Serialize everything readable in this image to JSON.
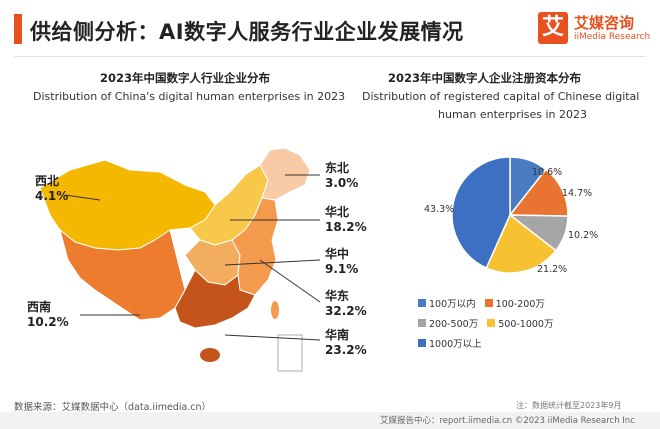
{
  "header": {
    "title": "供给侧分析：AI数字人服务行业企业发展情况",
    "logo_mark": "艾",
    "logo_cn": "艾媒咨询",
    "logo_en": "iiMedia Research"
  },
  "colors": {
    "accent": "#e8501e",
    "pie": [
      "#4a7cc4",
      "#e97432",
      "#a5a5a5",
      "#f7c232",
      "#3d6fc2"
    ],
    "map": {
      "west": "#f5b800",
      "south_west": "#ee7c2f",
      "south": "#c5541a",
      "north": "#f8c84a",
      "north_east": "#f8cba6",
      "east": "#f39a4d",
      "central": "#f3ad5e"
    }
  },
  "left_panel": {
    "title_cn": "2023年中国数字人行业企业分布",
    "title_en": "Distribution of China's digital human enterprises in 2023"
  },
  "right_panel": {
    "title_cn": "2023年中国数字人企业注册资本分布",
    "title_en_line1": "Distribution of registered capital of Chinese digital",
    "title_en_line2": "human enterprises in 2023"
  },
  "chart_data": [
    {
      "type": "map",
      "title": "2023年中国数字人行业企业分布",
      "subtitle": "Distribution of China's digital human enterprises in 2023",
      "categories": [
        "西北",
        "东北",
        "华北",
        "华中",
        "华东",
        "西南",
        "华南"
      ],
      "values": [
        4.1,
        3.0,
        18.2,
        9.1,
        32.2,
        10.2,
        23.2
      ],
      "value_labels": [
        "4.1%",
        "3.0%",
        "18.2%",
        "9.1%",
        "32.2%",
        "10.2%",
        "23.2%"
      ],
      "unit": "%"
    },
    {
      "type": "pie",
      "title": "2023年中国数字人企业注册资本分布",
      "subtitle": "Distribution of registered capital of Chinese digital human enterprises in 2023",
      "categories": [
        "100万以内",
        "100-200万",
        "200-500万",
        "500-1000万",
        "1000万以上"
      ],
      "values": [
        10.6,
        14.7,
        10.2,
        21.2,
        43.3
      ],
      "value_labels": [
        "10.6%",
        "14.7%",
        "10.2%",
        "21.2%",
        "43.3%"
      ],
      "legend_position": "bottom",
      "unit": "%"
    }
  ],
  "footer": {
    "source": "数据来源：艾媒数据中心（data.iimedia.cn）",
    "note": "注：数据统计截至2023年9月",
    "copyright": "艾媒报告中心：report.iimedia.cn  ©2023  iiMedia Research  Inc"
  }
}
